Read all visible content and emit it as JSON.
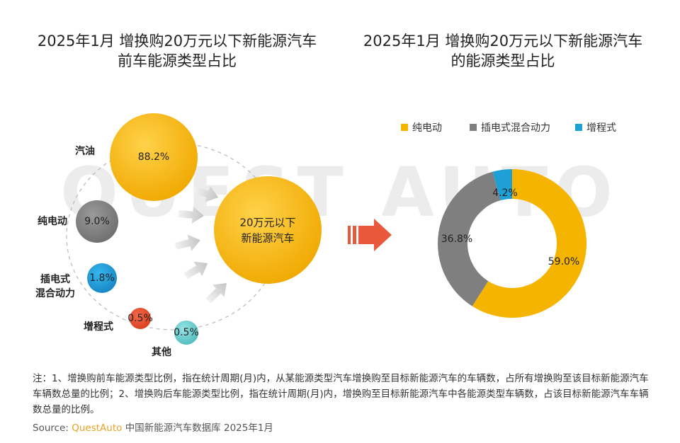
{
  "left_title": [
    "2025年1月 增换购20万元以下新能源汽车",
    "前车能源类型占比"
  ],
  "right_title": [
    "2025年1月 增换购20万元以下新能源汽车",
    "的能源类型占比"
  ],
  "target_label": [
    "20万元以下",
    "新能源汽车"
  ],
  "colors": {
    "gasoline": "#f5b400",
    "bev": "#f5b400",
    "phev": "#7f7f7f",
    "erev": "#1e9fd6",
    "phev_left": "#1e9fd6",
    "erev_left": "#e64f2b",
    "other": "#6ccfd0",
    "pure_ev_left": "#7f7f7f",
    "arrow": "#e8583a"
  },
  "chart_data": [
    {
      "type": "bubble",
      "title": "2025年1月 增换购20万元以下新能源汽车前车能源类型占比",
      "items": [
        {
          "name": "汽油",
          "value": 88.2,
          "label": "88.2%"
        },
        {
          "name": "纯电动",
          "value": 9.0,
          "label": "9.0%"
        },
        {
          "name": "插电式混合动力",
          "name_lines": [
            "插电式",
            "混合动力"
          ],
          "value": 1.8,
          "label": "1.8%"
        },
        {
          "name": "增程式",
          "value": 0.5,
          "label": "0.5%"
        },
        {
          "name": "其他",
          "value": 0.5,
          "label": "0.5%"
        }
      ]
    },
    {
      "type": "pie",
      "donut": true,
      "title": "2025年1月 增换购20万元以下新能源汽车的能源类型占比",
      "legend_position": "top",
      "slices": [
        {
          "name": "纯电动",
          "value": 59.0,
          "label": "59.0%"
        },
        {
          "name": "插电式混合动力",
          "value": 36.8,
          "label": "36.8%"
        },
        {
          "name": "增程式",
          "value": 4.2,
          "label": "4.2%"
        }
      ]
    }
  ],
  "note": "注：1、增换购前车能源类型比例，指在统计周期(月)内，从某能源类型汽车增换购至目标新能源汽车的车辆数，占所有增换购至该目标新能源汽车车辆数总量的比例；2、增换购后车能源类型比例，指在统计周期(月)内，增换购至目标新能源汽车中各能源类型车辆数，占该目标新能源汽车车辆数总量的比例。",
  "source": {
    "prefix": "Source:",
    "brand": "QuestAuto",
    "suffix": " 中国新能源汽车数据库 2025年1月"
  },
  "watermark": "QUEST AUTO"
}
